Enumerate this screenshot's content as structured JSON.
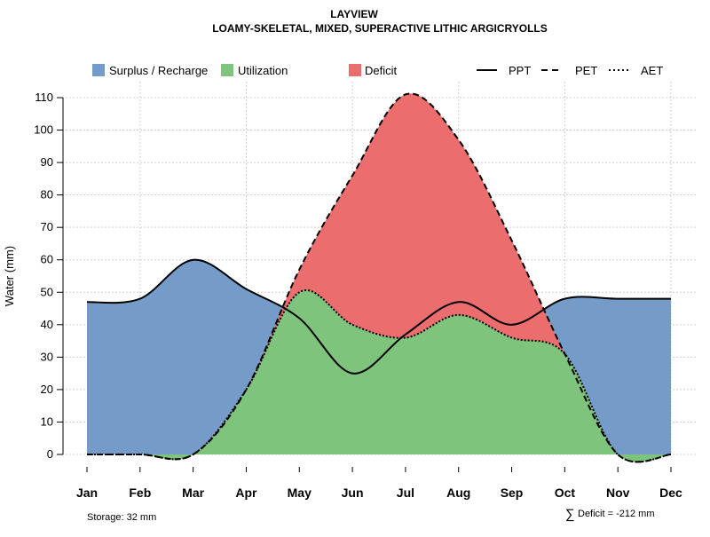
{
  "chart_data": {
    "type": "area",
    "title": "LAYVIEW",
    "subtitle": "LOAMY-SKELETAL, MIXED, SUPERACTIVE LITHIC ARGICRYOLLS",
    "xlabel": "",
    "ylabel": "Water (mm)",
    "ylim": [
      0,
      110
    ],
    "yticks": [
      0,
      10,
      20,
      30,
      40,
      50,
      60,
      70,
      80,
      90,
      100,
      110
    ],
    "categories": [
      "Jan",
      "Feb",
      "Mar",
      "Apr",
      "May",
      "Jun",
      "Jul",
      "Aug",
      "Sep",
      "Oct",
      "Nov",
      "Dec"
    ],
    "grid": true,
    "legend_position": "top",
    "legend": {
      "areas": [
        {
          "label": "Surplus / Recharge",
          "color": "#759CC9"
        },
        {
          "label": "Utilization",
          "color": "#7FC47C"
        },
        {
          "label": "Deficit",
          "color": "#EB6D6E"
        }
      ],
      "lines": [
        {
          "label": "PPT",
          "style": "solid"
        },
        {
          "label": "PET",
          "style": "dashed"
        },
        {
          "label": "AET",
          "style": "dotted"
        }
      ]
    },
    "series": [
      {
        "name": "PPT",
        "values": [
          47,
          48,
          60,
          51,
          42,
          25,
          37,
          47,
          40,
          48,
          48,
          48
        ]
      },
      {
        "name": "PET",
        "values": [
          0,
          0,
          0,
          20,
          57,
          86,
          111,
          97,
          66,
          31,
          0,
          0
        ]
      },
      {
        "name": "AET",
        "values": [
          0,
          0,
          0,
          20,
          50,
          40,
          36,
          43,
          36,
          31,
          0,
          0
        ]
      }
    ],
    "annotations": {
      "storage": "Storage: 32 mm",
      "deficit_symbol": "∑",
      "deficit": "Deficit = -212 mm"
    }
  }
}
